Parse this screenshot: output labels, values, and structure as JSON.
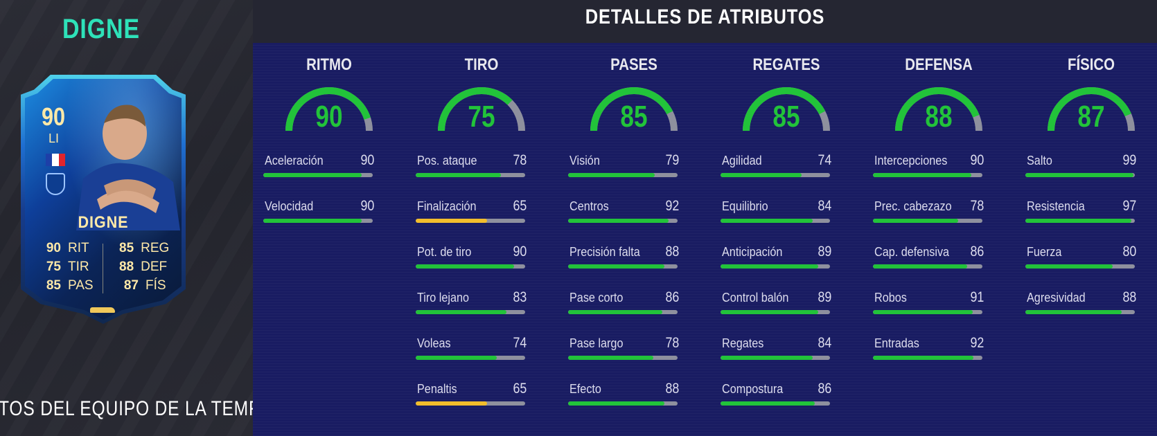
{
  "player": {
    "name": "DIGNE",
    "rating": "90",
    "position": "LI",
    "card_name": "DIGNE",
    "card_stats": [
      {
        "left": {
          "value": "90",
          "label": "RIT"
        },
        "right": {
          "value": "85",
          "label": "REG"
        }
      },
      {
        "left": {
          "value": "75",
          "label": "TIR"
        },
        "right": {
          "value": "88",
          "label": "DEF"
        }
      },
      {
        "left": {
          "value": "85",
          "label": "PAS"
        },
        "right": {
          "value": "87",
          "label": "FÍS"
        }
      }
    ],
    "season_text": "TOS DEL EQUIPO DE LA TEMF"
  },
  "header": {
    "title": "DETALLES DE ATRIBUTOS"
  },
  "colors": {
    "good": "#22c33a",
    "average": "#f2bd2c",
    "track": "#8e909e"
  },
  "categories": [
    {
      "name": "RITMO",
      "value": 90,
      "attributes": [
        {
          "name": "Aceleración",
          "value": 90
        },
        {
          "name": "Velocidad",
          "value": 90
        }
      ]
    },
    {
      "name": "TIRO",
      "value": 75,
      "attributes": [
        {
          "name": "Pos. ataque",
          "value": 78
        },
        {
          "name": "Finalización",
          "value": 65
        },
        {
          "name": "Pot. de tiro",
          "value": 90
        },
        {
          "name": "Tiro lejano",
          "value": 83
        },
        {
          "name": "Voleas",
          "value": 74
        },
        {
          "name": "Penaltis",
          "value": 65
        }
      ]
    },
    {
      "name": "PASES",
      "value": 85,
      "attributes": [
        {
          "name": "Visión",
          "value": 79
        },
        {
          "name": "Centros",
          "value": 92
        },
        {
          "name": "Precisión falta",
          "value": 88
        },
        {
          "name": "Pase corto",
          "value": 86
        },
        {
          "name": "Pase largo",
          "value": 78
        },
        {
          "name": "Efecto",
          "value": 88
        }
      ]
    },
    {
      "name": "REGATES",
      "value": 85,
      "attributes": [
        {
          "name": "Agilidad",
          "value": 74
        },
        {
          "name": "Equilibrio",
          "value": 84
        },
        {
          "name": "Anticipación",
          "value": 89
        },
        {
          "name": "Control balón",
          "value": 89
        },
        {
          "name": "Regates",
          "value": 84
        },
        {
          "name": "Compostura",
          "value": 86
        }
      ]
    },
    {
      "name": "DEFENSA",
      "value": 88,
      "attributes": [
        {
          "name": "Intercepciones",
          "value": 90
        },
        {
          "name": "Prec. cabezazo",
          "value": 78
        },
        {
          "name": "Cap. defensiva",
          "value": 86
        },
        {
          "name": "Robos",
          "value": 91
        },
        {
          "name": "Entradas",
          "value": 92
        }
      ]
    },
    {
      "name": "FÍSICO",
      "value": 87,
      "attributes": [
        {
          "name": "Salto",
          "value": 99
        },
        {
          "name": "Resistencia",
          "value": 97
        },
        {
          "name": "Fuerza",
          "value": 80
        },
        {
          "name": "Agresividad",
          "value": 88
        }
      ]
    }
  ]
}
